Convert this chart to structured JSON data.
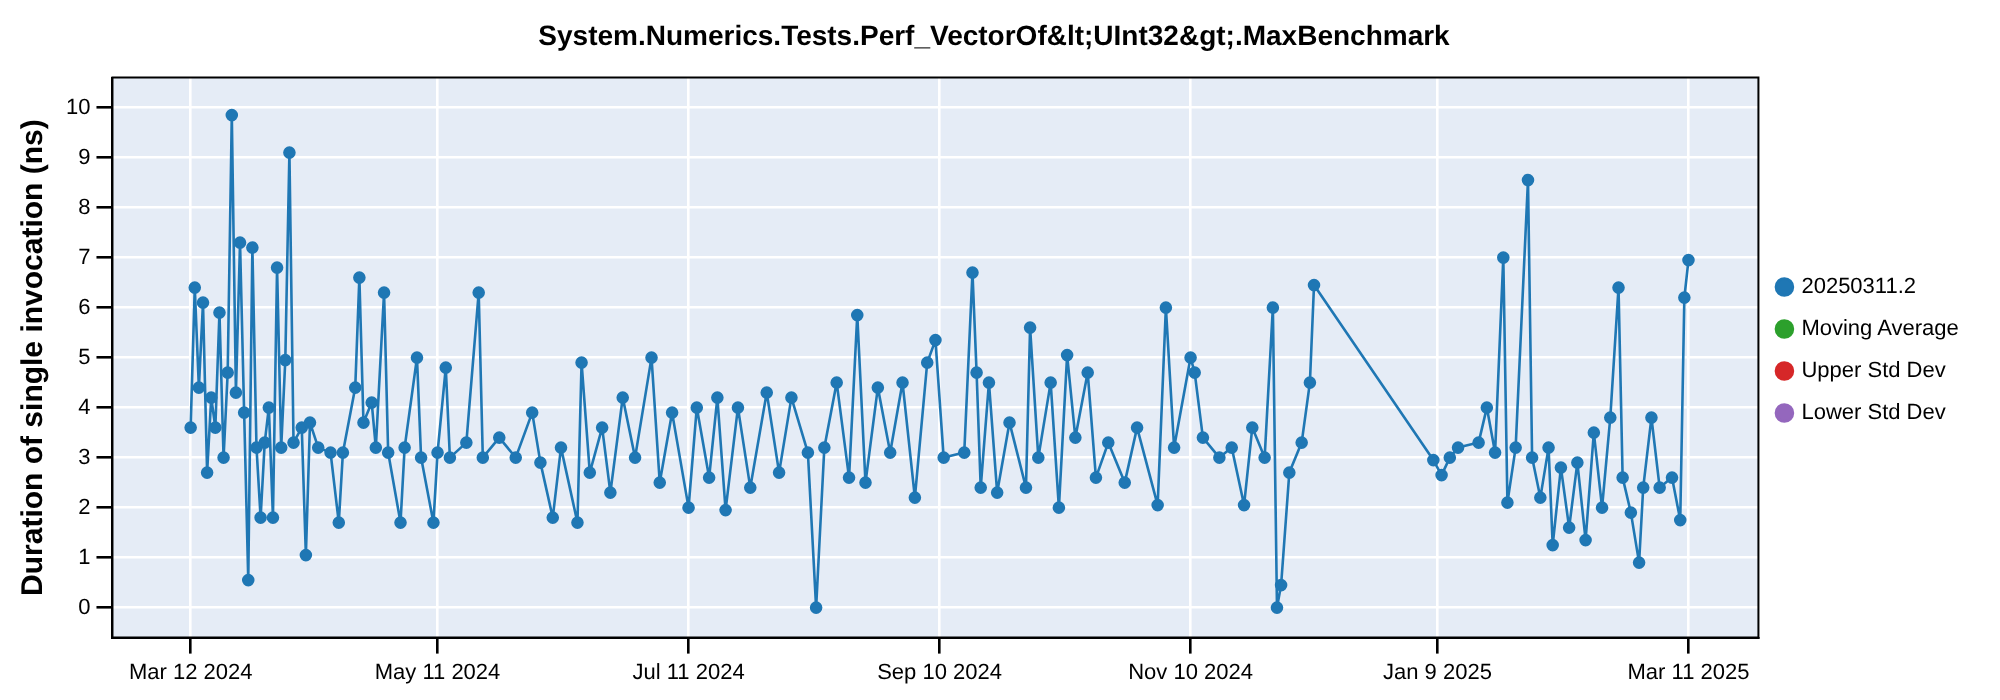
{
  "chart_data": {
    "type": "line",
    "title": "System.Numerics.Tests.Perf_VectorOf&lt;UInt32&gt;.MaxBenchmark",
    "ylabel": "Duration of single invocation (ns)",
    "xlim": [
      "2024-02-22",
      "2025-03-28"
    ],
    "xticks": [
      {
        "value": "2024-03-12",
        "label": "Mar 12 2024"
      },
      {
        "value": "2024-05-11",
        "label": "May 11 2024"
      },
      {
        "value": "2024-07-11",
        "label": "Jul 11 2024"
      },
      {
        "value": "2024-09-10",
        "label": "Sep 10 2024"
      },
      {
        "value": "2024-11-10",
        "label": "Nov 10 2024"
      },
      {
        "value": "2025-01-09",
        "label": "Jan 9 2025"
      },
      {
        "value": "2025-03-11",
        "label": "Mar 11 2025"
      }
    ],
    "ylim": [
      -0.6,
      10.6
    ],
    "yticks": [
      0,
      1,
      2,
      3,
      4,
      5,
      6,
      7,
      8,
      9,
      10
    ],
    "grid": true,
    "legend": "right",
    "marker": "circle",
    "series": [
      {
        "name": "20250311.2",
        "color": "#1f77b4",
        "x": [
          "2024-03-12",
          "2024-03-13",
          "2024-03-14",
          "2024-03-15",
          "2024-03-16",
          "2024-03-17",
          "2024-03-18",
          "2024-03-19",
          "2024-03-20",
          "2024-03-21",
          "2024-03-22",
          "2024-03-23",
          "2024-03-24",
          "2024-03-25",
          "2024-03-26",
          "2024-03-27",
          "2024-03-28",
          "2024-03-29",
          "2024-03-30",
          "2024-03-31",
          "2024-04-01",
          "2024-04-02",
          "2024-04-03",
          "2024-04-04",
          "2024-04-05",
          "2024-04-06",
          "2024-04-08",
          "2024-04-09",
          "2024-04-10",
          "2024-04-12",
          "2024-04-15",
          "2024-04-17",
          "2024-04-18",
          "2024-04-21",
          "2024-04-22",
          "2024-04-23",
          "2024-04-25",
          "2024-04-26",
          "2024-04-28",
          "2024-04-29",
          "2024-05-02",
          "2024-05-03",
          "2024-05-06",
          "2024-05-07",
          "2024-05-10",
          "2024-05-11",
          "2024-05-13",
          "2024-05-14",
          "2024-05-18",
          "2024-05-21",
          "2024-05-22",
          "2024-05-26",
          "2024-05-30",
          "2024-06-03",
          "2024-06-05",
          "2024-06-08",
          "2024-06-10",
          "2024-06-14",
          "2024-06-15",
          "2024-06-17",
          "2024-06-20",
          "2024-06-22",
          "2024-06-25",
          "2024-06-28",
          "2024-07-02",
          "2024-07-04",
          "2024-07-07",
          "2024-07-11",
          "2024-07-13",
          "2024-07-16",
          "2024-07-18",
          "2024-07-20",
          "2024-07-23",
          "2024-07-26",
          "2024-07-30",
          "2024-08-02",
          "2024-08-05",
          "2024-08-09",
          "2024-08-11",
          "2024-08-13",
          "2024-08-16",
          "2024-08-19",
          "2024-08-21",
          "2024-08-23",
          "2024-08-26",
          "2024-08-29",
          "2024-09-01",
          "2024-09-04",
          "2024-09-07",
          "2024-09-09",
          "2024-09-11",
          "2024-09-16",
          "2024-09-18",
          "2024-09-19",
          "2024-09-20",
          "2024-09-22",
          "2024-09-24",
          "2024-09-27",
          "2024-10-01",
          "2024-10-02",
          "2024-10-04",
          "2024-10-07",
          "2024-10-09",
          "2024-10-11",
          "2024-10-13",
          "2024-10-16",
          "2024-10-18",
          "2024-10-21",
          "2024-10-25",
          "2024-10-28",
          "2024-11-02",
          "2024-11-04",
          "2024-11-06",
          "2024-11-10",
          "2024-11-11",
          "2024-11-13",
          "2024-11-17",
          "2024-11-20",
          "2024-11-23",
          "2024-11-25",
          "2024-11-28",
          "2024-11-30",
          "2024-12-01",
          "2024-12-02",
          "2024-12-04",
          "2024-12-07",
          "2024-12-09",
          "2024-12-10",
          "2025-01-08",
          "2025-01-10",
          "2025-01-12",
          "2025-01-14",
          "2025-01-19",
          "2025-01-21",
          "2025-01-23",
          "2025-01-25",
          "2025-01-26",
          "2025-01-28",
          "2025-01-31",
          "2025-02-01",
          "2025-02-03",
          "2025-02-05",
          "2025-02-06",
          "2025-02-08",
          "2025-02-10",
          "2025-02-12",
          "2025-02-14",
          "2025-02-16",
          "2025-02-18",
          "2025-02-20",
          "2025-02-22",
          "2025-02-23",
          "2025-02-25",
          "2025-02-27",
          "2025-02-28",
          "2025-03-02",
          "2025-03-04",
          "2025-03-07",
          "2025-03-09",
          "2025-03-10",
          "2025-03-11"
        ],
        "values": [
          3.6,
          6.4,
          4.4,
          6.1,
          2.7,
          4.2,
          3.6,
          5.9,
          3.0,
          4.7,
          9.85,
          4.3,
          7.3,
          3.9,
          0.55,
          7.2,
          3.2,
          1.8,
          3.3,
          4.0,
          1.8,
          6.8,
          3.2,
          4.95,
          9.1,
          3.3,
          3.6,
          1.05,
          3.7,
          3.2,
          3.1,
          1.7,
          3.1,
          4.4,
          6.6,
          3.7,
          4.1,
          3.2,
          6.3,
          3.1,
          1.7,
          3.2,
          5.0,
          3.0,
          1.7,
          3.1,
          4.8,
          3.0,
          3.3,
          6.3,
          3.0,
          3.4,
          3.0,
          3.9,
          2.9,
          1.8,
          3.2,
          1.7,
          4.9,
          2.7,
          3.6,
          2.3,
          4.2,
          3.0,
          5.0,
          2.5,
          3.9,
          2.0,
          4.0,
          2.6,
          4.2,
          1.95,
          4.0,
          2.4,
          4.3,
          2.7,
          4.2,
          3.1,
          0.0,
          3.2,
          4.5,
          2.6,
          5.85,
          2.5,
          4.4,
          3.1,
          4.5,
          2.2,
          4.9,
          5.35,
          3.0,
          3.1,
          6.7,
          4.7,
          2.4,
          4.5,
          2.3,
          3.7,
          2.4,
          5.6,
          3.0,
          4.5,
          2.0,
          5.05,
          3.4,
          4.7,
          2.6,
          3.3,
          2.5,
          3.6,
          2.05,
          6.0,
          3.2,
          5.0,
          4.7,
          3.4,
          3.0,
          3.2,
          2.05,
          3.6,
          3.0,
          6.0,
          0.0,
          0.45,
          2.7,
          3.3,
          4.5,
          6.45,
          2.95,
          2.65,
          3.0,
          3.2,
          3.3,
          4.0,
          3.1,
          7.0,
          2.1,
          3.2,
          8.55,
          3.0,
          2.2,
          3.2,
          1.25,
          2.8,
          1.6,
          2.9,
          1.35,
          3.5,
          2.0,
          3.8,
          6.4,
          2.6,
          1.9,
          0.9,
          2.4,
          3.8,
          2.4,
          2.6,
          1.75,
          6.2,
          6.95
        ]
      },
      {
        "name": "Moving Average",
        "color": "#2ca02c"
      },
      {
        "name": "Upper Std Dev",
        "color": "#d62728"
      },
      {
        "name": "Lower Std Dev",
        "color": "#9467bd"
      }
    ]
  }
}
